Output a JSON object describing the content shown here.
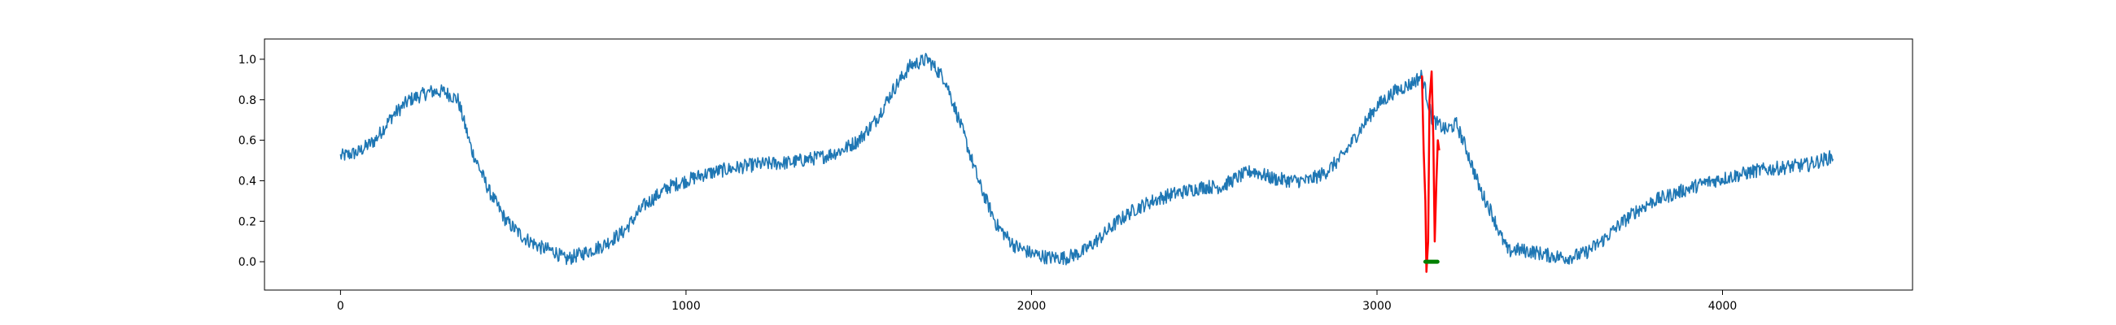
{
  "chart_data": {
    "type": "line",
    "title": "",
    "xlabel": "",
    "ylabel": "",
    "xlim": [
      -220,
      4550
    ],
    "ylim": [
      -0.14,
      1.1
    ],
    "x_ticks": [
      0,
      1000,
      2000,
      3000,
      4000
    ],
    "x_tick_labels": [
      "0",
      "1000",
      "2000",
      "3000",
      "4000"
    ],
    "y_ticks": [
      0.0,
      0.2,
      0.4,
      0.6,
      0.8,
      1.0
    ],
    "y_tick_labels": [
      "0.0",
      "0.2",
      "0.4",
      "0.6",
      "0.8",
      "1.0"
    ],
    "grid": false,
    "legend": "none",
    "series": [
      {
        "role": "signal",
        "color": "#1f77b4",
        "noise": 0.035,
        "x": [
          0,
          50,
          100,
          150,
          200,
          260,
          300,
          340,
          380,
          430,
          480,
          530,
          580,
          620,
          650,
          700,
          760,
          820,
          880,
          950,
          1000,
          1050,
          1100,
          1200,
          1300,
          1400,
          1450,
          1500,
          1550,
          1600,
          1650,
          1700,
          1750,
          1800,
          1850,
          1900,
          1950,
          2000,
          2050,
          2100,
          2150,
          2200,
          2250,
          2300,
          2350,
          2400,
          2450,
          2500,
          2550,
          2600,
          2640,
          2700,
          2750,
          2800,
          2850,
          2900,
          2950,
          3000,
          3050,
          3100,
          3130,
          3160,
          3200,
          3230,
          3260,
          3300,
          3330,
          3360,
          3380,
          3400,
          3450,
          3500,
          3550,
          3600,
          3650,
          3700,
          3750,
          3800,
          3850,
          3900,
          3950,
          4000,
          4050,
          4100,
          4150,
          4200,
          4250,
          4320
        ],
        "y": [
          0.52,
          0.54,
          0.6,
          0.72,
          0.8,
          0.84,
          0.84,
          0.8,
          0.55,
          0.35,
          0.2,
          0.12,
          0.07,
          0.05,
          0.01,
          0.04,
          0.08,
          0.15,
          0.28,
          0.37,
          0.4,
          0.43,
          0.45,
          0.48,
          0.49,
          0.52,
          0.55,
          0.6,
          0.7,
          0.85,
          0.97,
          1.0,
          0.9,
          0.65,
          0.38,
          0.18,
          0.08,
          0.04,
          0.02,
          0.02,
          0.05,
          0.12,
          0.2,
          0.26,
          0.3,
          0.33,
          0.35,
          0.37,
          0.37,
          0.42,
          0.45,
          0.41,
          0.4,
          0.4,
          0.44,
          0.52,
          0.65,
          0.77,
          0.84,
          0.88,
          0.92,
          0.7,
          0.65,
          0.68,
          0.55,
          0.35,
          0.25,
          0.12,
          0.05,
          0.06,
          0.05,
          0.03,
          0.02,
          0.04,
          0.1,
          0.18,
          0.25,
          0.3,
          0.33,
          0.36,
          0.39,
          0.41,
          0.43,
          0.45,
          0.46,
          0.47,
          0.48,
          0.52
        ]
      },
      {
        "role": "highlight",
        "color": "#ff0000",
        "x": [
          3130,
          3135,
          3140,
          3143,
          3148,
          3152,
          3158,
          3163,
          3167,
          3172,
          3176,
          3180
        ],
        "y": [
          0.92,
          0.55,
          0.3,
          -0.05,
          0.1,
          0.8,
          0.94,
          0.6,
          0.1,
          0.4,
          0.6,
          0.55
        ]
      },
      {
        "role": "marker",
        "color": "#008000",
        "x": [
          3140,
          3175
        ],
        "y": [
          0.0,
          0.0
        ]
      }
    ]
  }
}
